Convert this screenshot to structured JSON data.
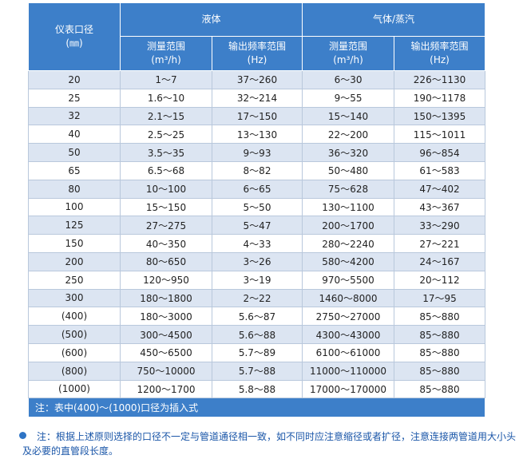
{
  "table": {
    "header": {
      "bore": "仪表口径",
      "bore_unit": "(㎜)",
      "liquid": "液体",
      "gas": "气体/蒸汽",
      "liquid_range": "测量范围",
      "liquid_range_unit": "(m³/h)",
      "liquid_freq": "输出频率范围",
      "liquid_freq_unit": "(Hz)",
      "gas_range": "测量范围",
      "gas_range_unit": "(m³/h)",
      "gas_freq": "输出频率范围",
      "gas_freq_unit": "(Hz)"
    },
    "rows": [
      [
        "20",
        "1～7",
        "37～260",
        "6～30",
        "226～1130"
      ],
      [
        "25",
        "1.6～10",
        "32～214",
        "9～55",
        "190～1178"
      ],
      [
        "32",
        "2.1～15",
        "17～150",
        "15～140",
        "150～1395"
      ],
      [
        "40",
        "2.5～25",
        "13～130",
        "22～200",
        "115～1011"
      ],
      [
        "50",
        "3.5～35",
        "9～93",
        "36～320",
        "96～854"
      ],
      [
        "65",
        "6.5～68",
        "8～82",
        "50～480",
        "61～583"
      ],
      [
        "80",
        "10～100",
        "6～65",
        "75～628",
        "47～402"
      ],
      [
        "100",
        "15～150",
        "5～50",
        "130～1100",
        "43～367"
      ],
      [
        "125",
        "27～275",
        "5～47",
        "200～1700",
        "33～290"
      ],
      [
        "150",
        "40～350",
        "4～33",
        "280～2240",
        "27～221"
      ],
      [
        "200",
        "80～650",
        "3～26",
        "580～4200",
        "24～167"
      ],
      [
        "250",
        "120～950",
        "3～19",
        "970～5500",
        "20～112"
      ],
      [
        "300",
        "180～1800",
        "2～22",
        "1460～8000",
        "17～95"
      ],
      [
        "(400)",
        "180～3000",
        "5.6～87",
        "2750～27000",
        "85～880"
      ],
      [
        "(500)",
        "300～4500",
        "5.6～88",
        "4300～43000",
        "85～880"
      ],
      [
        "(600)",
        "450～6500",
        "5.7～89",
        "6100～61000",
        "85～880"
      ],
      [
        "(800)",
        "750～10000",
        "5.7～88",
        "11000～110000",
        "85～880"
      ],
      [
        "(1000)",
        "1200～1700",
        "5.8～88",
        "17000～170000",
        "85～880"
      ]
    ],
    "footnote": "注：表中(400)～(1000)口径为插入式"
  },
  "note": "注：根据上述原则选择的口径不一定与管道通径相一致，如不同时应注意缩径或者扩径，注意连接两管道用大小头及必要的直管段长度。"
}
